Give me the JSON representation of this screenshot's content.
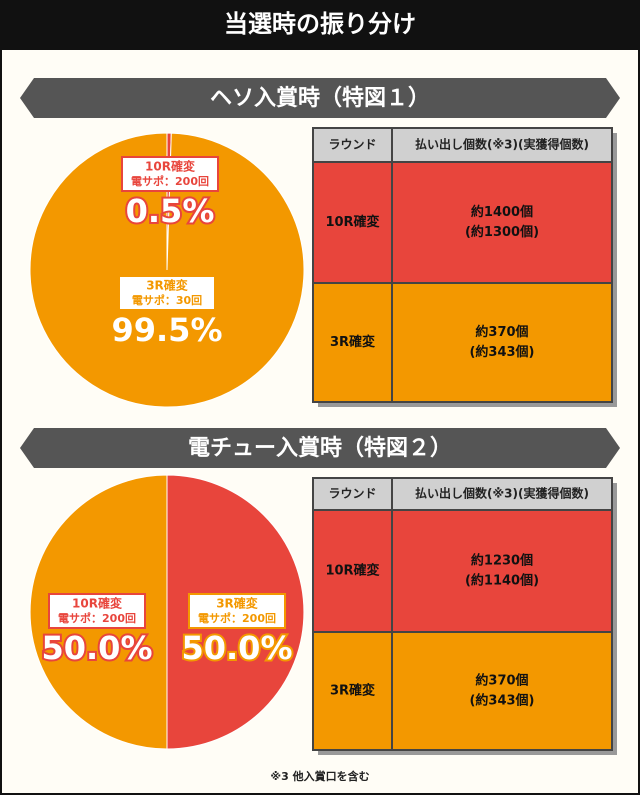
{
  "title": "当選時の振り分け",
  "chart_data": [
    {
      "type": "pie",
      "title": "ヘソ入賞時（特図１）",
      "categories": [
        "10R確変",
        "3R確変"
      ],
      "support": [
        "電サポ：200回",
        "電サポ：30回"
      ],
      "values": [
        0.5,
        99.5
      ],
      "value_labels": [
        "0.5%",
        "99.5%"
      ],
      "colors": [
        "#e8453c",
        "#f39800"
      ]
    },
    {
      "type": "pie",
      "title": "電チュー入賞時（特図２）",
      "categories": [
        "10R確変",
        "3R確変"
      ],
      "support": [
        "電サポ：200回",
        "電サポ：200回"
      ],
      "values": [
        50,
        50
      ],
      "value_labels": [
        "50.0%",
        "50.0%"
      ],
      "colors": [
        "#e8453c",
        "#f39800"
      ]
    }
  ],
  "tables": [
    {
      "header": [
        "ラウンド",
        "払い出し個数(※3)(実獲得個数)"
      ],
      "rows": [
        [
          "10R確変",
          "約1400個",
          "(約1300個)"
        ],
        [
          "3R確変",
          "約370個",
          "(約343個)"
        ]
      ]
    },
    {
      "header": [
        "ラウンド",
        "払い出し個数(※3)(実獲得個数)"
      ],
      "rows": [
        [
          "10R確変",
          "約1230個",
          "(約1140個)"
        ],
        [
          "3R確変",
          "約370個",
          "(約343個)"
        ]
      ]
    }
  ],
  "footnote": "※3 他入賞口を含む"
}
